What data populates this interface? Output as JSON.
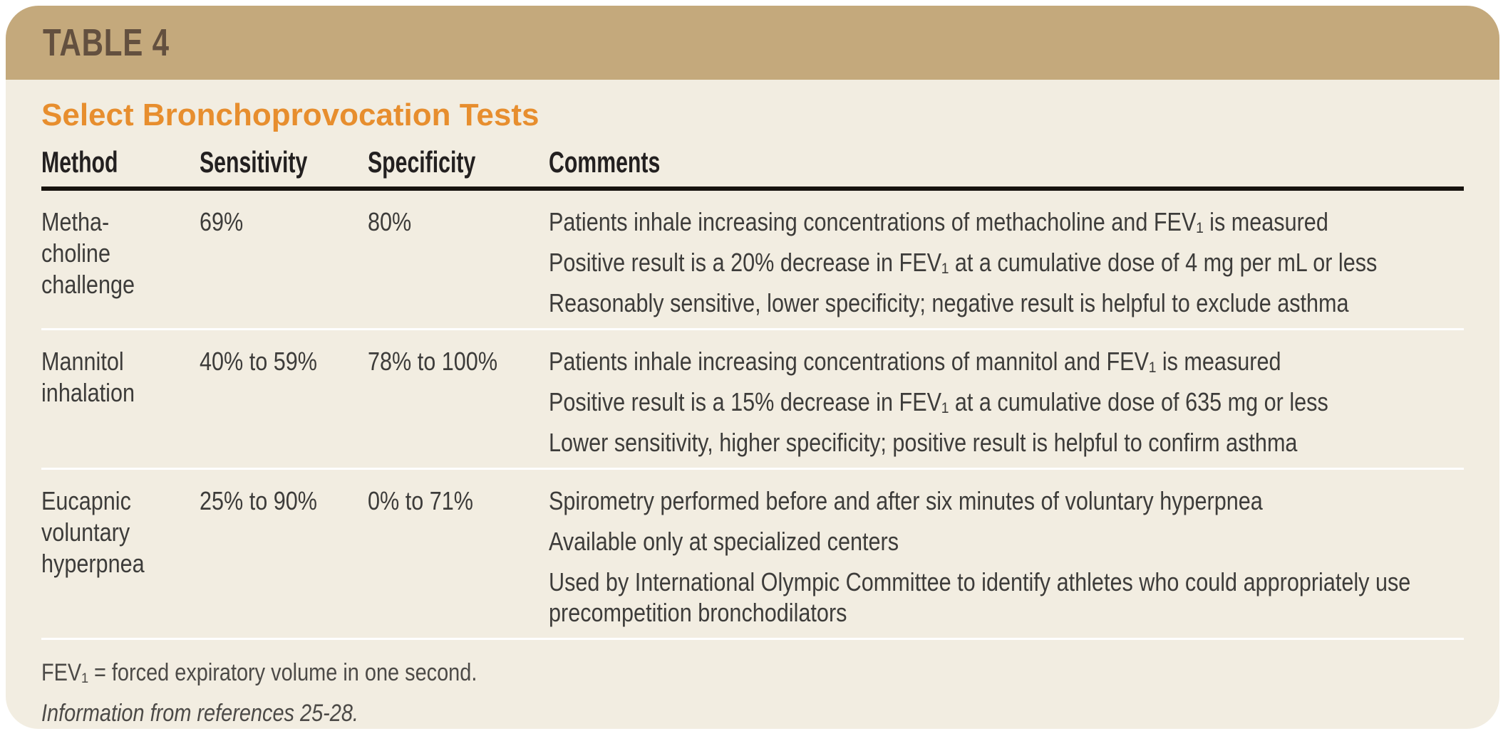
{
  "table": {
    "label": "TABLE 4",
    "title": "Select Bronchoprovocation Tests",
    "columns": [
      "Method",
      "Sensitivity",
      "Specificity",
      "Comments"
    ],
    "rows": [
      {
        "method": "Metha-choline challenge",
        "sensitivity": "69%",
        "specificity": "80%",
        "comments": [
          "Patients inhale increasing concentrations of methacholine and FEV₁ is measured",
          "Positive result is a 20% decrease in FEV₁ at a cumulative dose of 4 mg per mL or less",
          "Reasonably sensitive, lower specificity; negative result is helpful to exclude asthma"
        ]
      },
      {
        "method": "Mannitol inhalation",
        "sensitivity": "40% to 59%",
        "specificity": "78% to 100%",
        "comments": [
          "Patients inhale increasing concentrations of mannitol and FEV₁ is measured",
          "Positive result is a 15% decrease in FEV₁ at a cumulative dose of 635 mg or less",
          "Lower sensitivity, higher specificity; positive result is helpful to confirm asthma"
        ]
      },
      {
        "method": "Eucapnic voluntary hyperpnea",
        "sensitivity": "25% to 90%",
        "specificity": "0% to 71%",
        "comments": [
          "Spirometry performed before and after six minutes of voluntary hyperpnea",
          "Available only at specialized centers",
          "Used by International Olympic Committee to identify athletes who could appropriately use precompetition bronchodilators"
        ]
      }
    ],
    "footnotes": {
      "abbreviation": "FEV₁ = forced expiratory volume in one second.",
      "source": "Information from references 25-28."
    },
    "colors": {
      "band": "#c4a97c",
      "band_text": "#63503f",
      "background": "#f2ede1",
      "title": "#e78e2e",
      "text": "#3d3c3a",
      "header_text": "#232020",
      "header_rule": "#17130e",
      "row_divider": "#ffffff",
      "footnote_text": "#4c4a47"
    }
  }
}
